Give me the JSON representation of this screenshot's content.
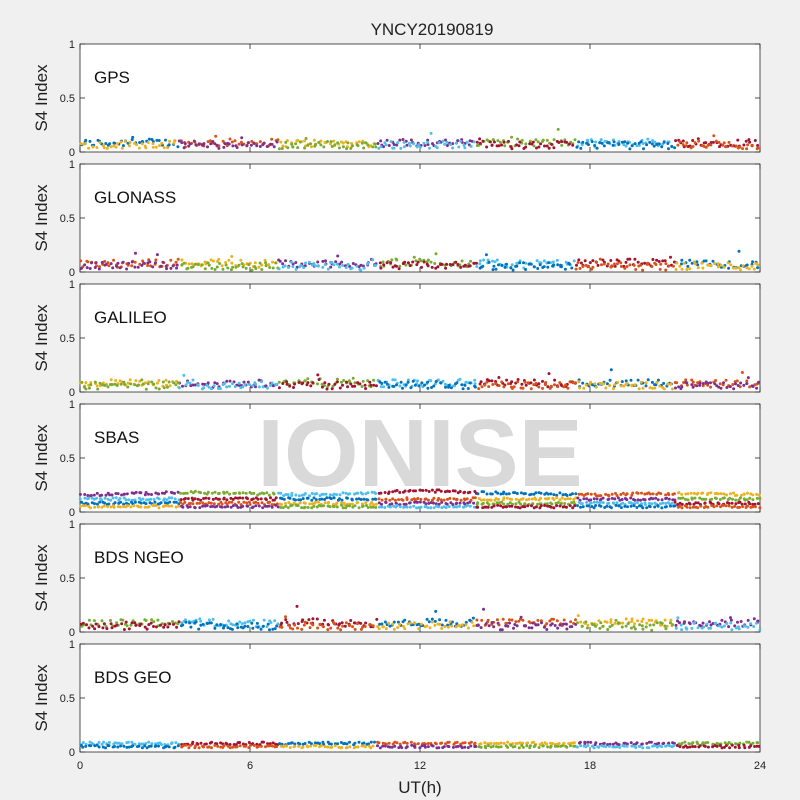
{
  "title": "YNCY20190819",
  "watermark": "IONISE",
  "chart_data": {
    "type": "scatter",
    "title": "YNCY20190819",
    "xlabel": "UT(h)",
    "ylabel": "S4 Index",
    "xlim": [
      0,
      24
    ],
    "ylim": [
      0,
      1
    ],
    "xticks": [
      0,
      6,
      12,
      18,
      24
    ],
    "xtick_labels": [
      "0",
      "6",
      "12",
      "18",
      "24"
    ],
    "yticks": [
      0,
      0.5,
      1
    ],
    "ytick_labels": [
      "0",
      "0.5",
      "1"
    ],
    "grid": false,
    "colors": [
      "#0072BD",
      "#D95319",
      "#EDB120",
      "#7E2F8E",
      "#77AC30",
      "#4DBEEE",
      "#A2142F"
    ],
    "panels": [
      {
        "label": "GPS",
        "series": [
          {
            "x": [
              0,
              2,
              4,
              6,
              8,
              10,
              12,
              14,
              16,
              18,
              20,
              22,
              24
            ],
            "y": [
              0.08,
              0.09,
              0.08,
              0.09,
              0.08,
              0.08,
              0.09,
              0.08,
              0.09,
              0.08,
              0.09,
              0.08,
              0.09
            ]
          },
          {
            "x": [
              0,
              2,
              4,
              6,
              8,
              10,
              12,
              14,
              16,
              18,
              20,
              22,
              24
            ],
            "y": [
              0.06,
              0.07,
              0.07,
              0.06,
              0.07,
              0.06,
              0.07,
              0.07,
              0.06,
              0.07,
              0.06,
              0.07,
              0.06
            ]
          }
        ]
      },
      {
        "label": "GLONASS",
        "series": [
          {
            "x": [
              0,
              2,
              4,
              6,
              8,
              10,
              12,
              14,
              16,
              18,
              20,
              22,
              24
            ],
            "y": [
              0.07,
              0.08,
              0.09,
              0.08,
              0.07,
              0.08,
              0.09,
              0.08,
              0.07,
              0.08,
              0.09,
              0.07,
              0.07
            ]
          },
          {
            "x": [
              0,
              2,
              4,
              6,
              8,
              10,
              12,
              14,
              16,
              18,
              20,
              22,
              24
            ],
            "y": [
              0.05,
              0.06,
              0.06,
              0.05,
              0.06,
              0.05,
              0.06,
              0.06,
              0.05,
              0.06,
              0.05,
              0.06,
              0.05
            ]
          }
        ]
      },
      {
        "label": "GALILEO",
        "series": [
          {
            "x": [
              0,
              2,
              4,
              6,
              8,
              10,
              12,
              14,
              16,
              18,
              20,
              22,
              24
            ],
            "y": [
              0.08,
              0.08,
              0.07,
              0.08,
              0.09,
              0.08,
              0.08,
              0.09,
              0.08,
              0.08,
              0.09,
              0.08,
              0.08
            ]
          },
          {
            "x": [
              0,
              2,
              4,
              6,
              8,
              10,
              12,
              14,
              16,
              18,
              20,
              22,
              24
            ],
            "y": [
              0.06,
              0.06,
              0.06,
              0.07,
              0.06,
              0.06,
              0.07,
              0.06,
              0.06,
              0.07,
              0.06,
              0.06,
              0.06
            ]
          }
        ]
      },
      {
        "label": "SBAS",
        "series": [
          {
            "x": [
              0,
              2,
              4,
              6,
              8,
              10,
              12,
              14,
              16,
              18,
              20,
              22,
              24
            ],
            "y": [
              0.16,
              0.17,
              0.18,
              0.17,
              0.16,
              0.17,
              0.2,
              0.18,
              0.17,
              0.16,
              0.17,
              0.17,
              0.16
            ]
          },
          {
            "x": [
              0,
              2,
              4,
              6,
              8,
              10,
              12,
              14,
              16,
              18,
              20,
              22,
              24
            ],
            "y": [
              0.12,
              0.12,
              0.12,
              0.12,
              0.12,
              0.12,
              0.12,
              0.12,
              0.12,
              0.12,
              0.12,
              0.12,
              0.12
            ]
          },
          {
            "x": [
              0,
              2,
              4,
              6,
              8,
              10,
              12,
              14,
              16,
              18,
              20,
              22,
              24
            ],
            "y": [
              0.08,
              0.08,
              0.08,
              0.08,
              0.08,
              0.08,
              0.08,
              0.08,
              0.08,
              0.08,
              0.08,
              0.08,
              0.08
            ]
          },
          {
            "x": [
              0,
              2,
              4,
              6,
              8,
              10,
              12,
              14,
              16,
              18,
              20,
              22,
              24
            ],
            "y": [
              0.05,
              0.05,
              0.05,
              0.05,
              0.05,
              0.05,
              0.05,
              0.05,
              0.05,
              0.05,
              0.05,
              0.05,
              0.05
            ]
          }
        ]
      },
      {
        "label": "BDS NGEO",
        "series": [
          {
            "x": [
              0,
              2,
              4,
              6,
              8,
              10,
              12,
              14,
              16,
              18,
              20,
              22,
              24
            ],
            "y": [
              0.08,
              0.09,
              0.09,
              0.08,
              0.09,
              0.08,
              0.09,
              0.08,
              0.09,
              0.08,
              0.09,
              0.08,
              0.09
            ]
          },
          {
            "x": [
              0,
              2,
              4,
              6,
              8,
              10,
              12,
              14,
              16,
              18,
              20,
              22,
              24
            ],
            "y": [
              0.05,
              0.06,
              0.06,
              0.05,
              0.06,
              0.05,
              0.06,
              0.06,
              0.05,
              0.06,
              0.05,
              0.06,
              0.05
            ]
          }
        ]
      },
      {
        "label": "BDS GEO",
        "series": [
          {
            "x": [
              0,
              2,
              4,
              6,
              8,
              10,
              12,
              14,
              16,
              18,
              20,
              22,
              24
            ],
            "y": [
              0.08,
              0.08,
              0.08,
              0.08,
              0.08,
              0.08,
              0.08,
              0.08,
              0.08,
              0.08,
              0.08,
              0.08,
              0.08
            ]
          },
          {
            "x": [
              0,
              2,
              4,
              6,
              8,
              10,
              12,
              14,
              16,
              18,
              20,
              22,
              24
            ],
            "y": [
              0.05,
              0.05,
              0.05,
              0.05,
              0.05,
              0.05,
              0.05,
              0.05,
              0.05,
              0.05,
              0.05,
              0.05,
              0.05
            ]
          }
        ]
      }
    ]
  }
}
